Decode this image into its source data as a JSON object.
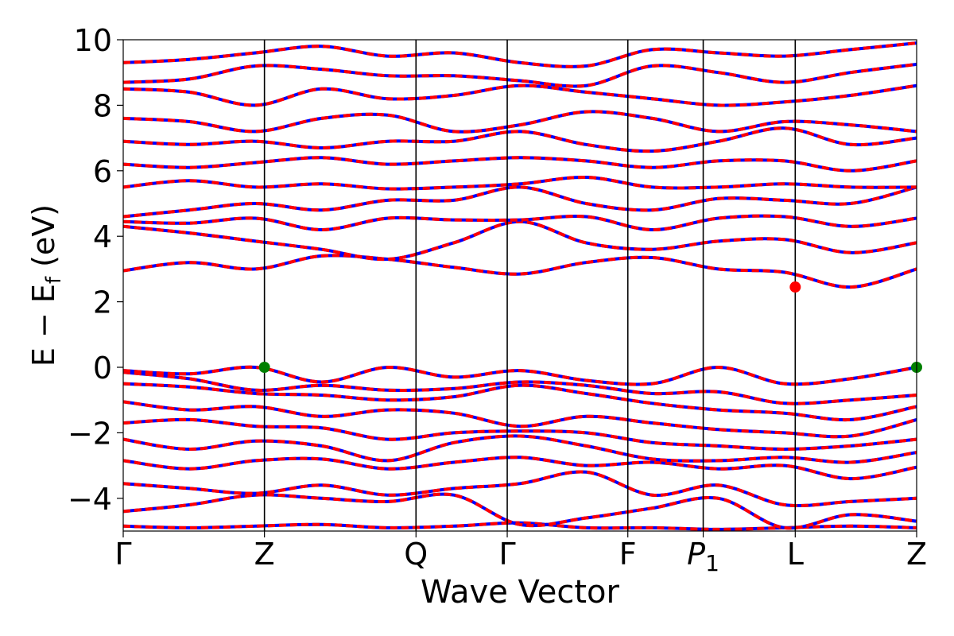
{
  "chart_data": {
    "type": "line",
    "title": "",
    "xlabel": "Wave Vector",
    "ylabel": "E − E_f (eV)",
    "ylabel_parts": {
      "main": "E − E",
      "sub": "f",
      "unit": " (eV)"
    },
    "ylim": [
      -5,
      10
    ],
    "yticks": [
      -4,
      -2,
      0,
      2,
      4,
      6,
      8,
      10
    ],
    "grid": false,
    "kpath_labels": [
      {
        "label": "Γ",
        "sub": ""
      },
      {
        "label": "Z",
        "sub": ""
      },
      {
        "label": "Q",
        "sub": ""
      },
      {
        "label": "Γ",
        "sub": ""
      },
      {
        "label": "F",
        "sub": ""
      },
      {
        "label": "P",
        "sub": "1"
      },
      {
        "label": "L",
        "sub": ""
      },
      {
        "label": "Z",
        "sub": ""
      }
    ],
    "kpath_positions": [
      0,
      0.178,
      0.369,
      0.484,
      0.636,
      0.731,
      0.847,
      1.0
    ],
    "series_style": [
      {
        "role": "bands",
        "color": "#0000ff",
        "dash": "solid"
      },
      {
        "role": "bands-overlay",
        "color": "#ff0000",
        "dash": "dashed"
      }
    ],
    "bands": [
      [
        -4.85,
        -4.9,
        -4.85,
        -4.8,
        -4.9,
        -4.85,
        -4.75,
        -4.9,
        -4.9,
        -4.95,
        -4.9,
        -4.85,
        -4.9
      ],
      [
        -4.4,
        -4.2,
        -3.9,
        -4.0,
        -4.1,
        -3.9,
        -4.8,
        -4.6,
        -4.3,
        -4.0,
        -4.9,
        -4.5,
        -4.7
      ],
      [
        -3.55,
        -3.7,
        -3.85,
        -3.6,
        -3.9,
        -3.7,
        -3.55,
        -3.2,
        -3.9,
        -3.6,
        -4.2,
        -4.1,
        -4.0
      ],
      [
        -2.85,
        -3.1,
        -2.85,
        -2.8,
        -3.1,
        -2.9,
        -2.75,
        -3.0,
        -2.9,
        -3.1,
        -3.0,
        -3.4,
        -3.05
      ],
      [
        -2.2,
        -2.5,
        -2.25,
        -2.4,
        -2.85,
        -2.3,
        -2.1,
        -2.4,
        -2.8,
        -2.85,
        -2.75,
        -2.9,
        -2.6
      ],
      [
        -1.7,
        -1.6,
        -1.8,
        -1.85,
        -2.2,
        -2.0,
        -1.95,
        -2.0,
        -2.3,
        -2.4,
        -2.5,
        -2.4,
        -2.2
      ],
      [
        -1.05,
        -1.3,
        -1.2,
        -1.5,
        -1.3,
        -1.4,
        -1.8,
        -1.5,
        -1.7,
        -1.9,
        -2.0,
        -2.1,
        -1.6
      ],
      [
        -0.5,
        -0.6,
        -0.8,
        -0.85,
        -1.0,
        -0.9,
        -0.55,
        -0.8,
        -1.1,
        -1.3,
        -1.4,
        -1.6,
        -1.2
      ],
      [
        -0.15,
        -0.35,
        -0.7,
        -0.55,
        -0.7,
        -0.65,
        -0.45,
        -0.55,
        -0.8,
        -0.75,
        -1.1,
        -1.0,
        -0.85
      ],
      [
        -0.1,
        -0.2,
        0.0,
        -0.45,
        0.0,
        -0.3,
        -0.1,
        -0.4,
        -0.5,
        0.0,
        -0.5,
        -0.35,
        0.0
      ],
      [
        2.95,
        3.2,
        3.0,
        3.4,
        3.3,
        3.05,
        2.85,
        3.2,
        3.35,
        3.0,
        2.9,
        2.45,
        3.0
      ],
      [
        4.3,
        4.1,
        3.85,
        3.6,
        3.3,
        3.8,
        4.45,
        3.8,
        3.6,
        3.85,
        3.9,
        3.5,
        3.8
      ],
      [
        4.45,
        4.4,
        4.55,
        4.2,
        4.55,
        4.5,
        4.5,
        4.6,
        4.2,
        4.55,
        4.6,
        4.3,
        4.55
      ],
      [
        4.6,
        4.8,
        5.0,
        4.8,
        5.1,
        5.1,
        5.5,
        5.0,
        4.8,
        5.15,
        5.1,
        5.0,
        5.5
      ],
      [
        5.5,
        5.7,
        5.5,
        5.6,
        5.45,
        5.5,
        5.6,
        5.8,
        5.5,
        5.5,
        5.6,
        5.5,
        5.5
      ],
      [
        6.2,
        6.1,
        6.25,
        6.4,
        6.2,
        6.3,
        6.4,
        6.3,
        6.1,
        6.3,
        6.3,
        6.0,
        6.3
      ],
      [
        6.9,
        6.8,
        6.9,
        6.7,
        6.9,
        6.9,
        7.2,
        6.8,
        6.6,
        6.9,
        7.3,
        6.8,
        7.0
      ],
      [
        7.6,
        7.5,
        7.2,
        7.6,
        7.7,
        7.2,
        7.4,
        7.8,
        7.6,
        7.2,
        7.5,
        7.4,
        7.2
      ],
      [
        8.5,
        8.4,
        8.0,
        8.5,
        8.2,
        8.3,
        8.6,
        8.4,
        8.2,
        8.0,
        8.1,
        8.3,
        8.6
      ],
      [
        8.7,
        8.8,
        9.2,
        9.1,
        8.9,
        8.9,
        8.75,
        8.6,
        9.2,
        9.0,
        8.7,
        9.0,
        9.25
      ],
      [
        9.3,
        9.4,
        9.6,
        9.8,
        9.5,
        9.6,
        9.3,
        9.2,
        9.7,
        9.6,
        9.5,
        9.7,
        9.9
      ]
    ],
    "markers": [
      {
        "x": 0.178,
        "y": 0.0,
        "color": "#008000",
        "label": "VBM"
      },
      {
        "x": 1.0,
        "y": 0.0,
        "color": "#008000",
        "label": "VBM"
      },
      {
        "x": 0.847,
        "y": 2.45,
        "color": "#ff0000",
        "label": "CBM"
      }
    ],
    "colors": {
      "band_primary": "#0000ff",
      "band_overlay": "#ff0000",
      "frame": "#000000"
    }
  }
}
